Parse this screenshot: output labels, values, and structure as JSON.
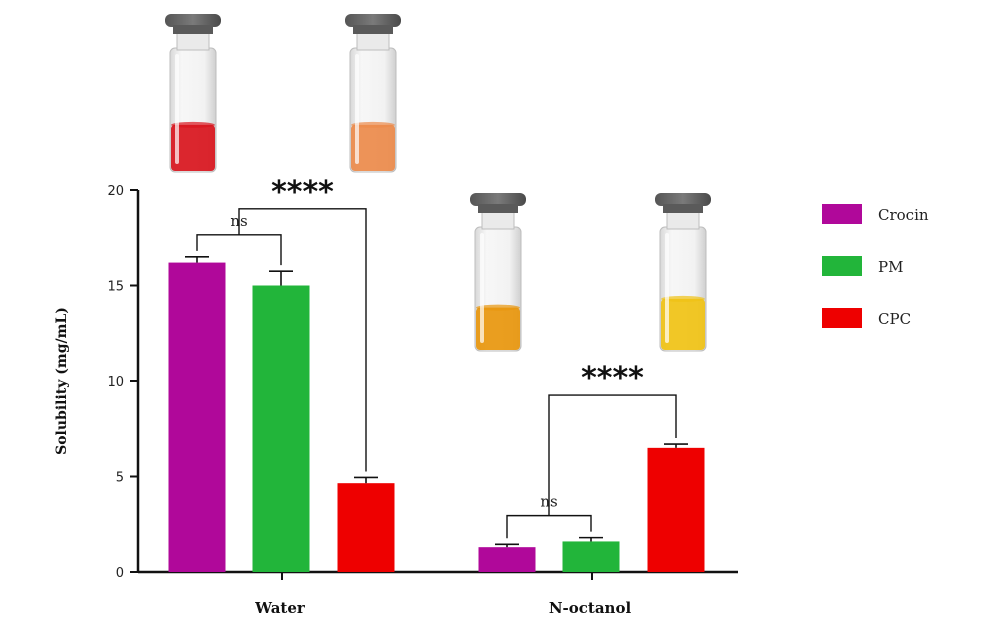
{
  "chart_data": {
    "type": "bar",
    "categories": [
      "Water",
      "N-octanol"
    ],
    "ylabel": "Solubility (mg/mL)",
    "ylim": [
      0,
      20
    ],
    "yticks": [
      0,
      5,
      10,
      15,
      20
    ],
    "series": [
      {
        "name": "Crocin",
        "color": "#b0089a",
        "values": [
          16.2,
          1.3
        ],
        "errors": [
          0.3,
          0.15
        ]
      },
      {
        "name": "PM",
        "color": "#22b53a",
        "values": [
          15.0,
          1.6
        ],
        "errors": [
          0.75,
          0.2
        ]
      },
      {
        "name": "CPC",
        "color": "#ee0000",
        "values": [
          4.65,
          6.5
        ],
        "errors": [
          0.3,
          0.2
        ]
      }
    ],
    "legend_position": "right",
    "annotations": [
      {
        "category": "Water",
        "from": "Crocin",
        "to": "PM",
        "label": "ns"
      },
      {
        "category": "Water",
        "from": "PM",
        "to": "CPC",
        "label": "****"
      },
      {
        "category": "N-octanol",
        "from": "Crocin",
        "to": "PM",
        "label": "ns"
      },
      {
        "category": "N-octanol",
        "from": "PM",
        "to": "CPC",
        "label": "****"
      }
    ]
  },
  "photos": [
    {
      "label": "crocin-water-vial",
      "liquid_color": "#d8141c"
    },
    {
      "label": "pm-water-vial",
      "liquid_color": "#ec8a4a"
    },
    {
      "label": "crocin-octanol-vial",
      "liquid_color": "#e8960c"
    },
    {
      "label": "cpc-octanol-vial",
      "liquid_color": "#f0c214"
    }
  ]
}
